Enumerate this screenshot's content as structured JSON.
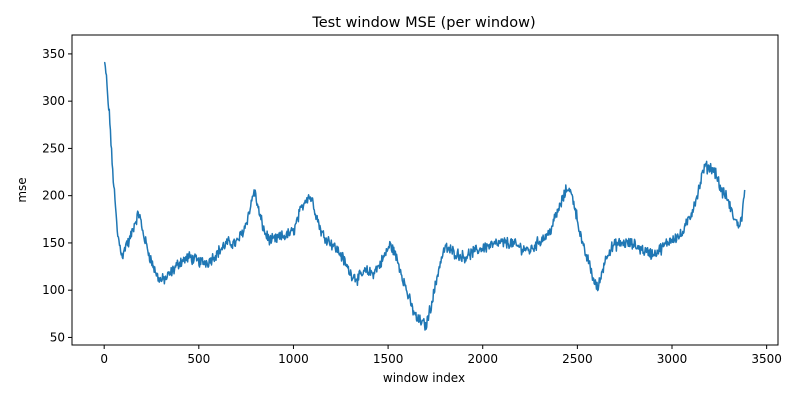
{
  "chart_data": {
    "type": "line",
    "title": "Test window MSE (per window)",
    "xlabel": "window index",
    "ylabel": "mse",
    "xlim": [
      -170,
      3560
    ],
    "ylim": [
      42,
      370
    ],
    "x_ticks": [
      0,
      500,
      1000,
      1500,
      2000,
      2500,
      3000,
      3500
    ],
    "y_ticks": [
      50,
      100,
      150,
      200,
      250,
      300,
      350
    ],
    "x_tick_labels": [
      "0",
      "500",
      "1000",
      "1500",
      "2000",
      "2500",
      "3000",
      "3500"
    ],
    "y_tick_labels": [
      "50",
      "100",
      "150",
      "200",
      "250",
      "300",
      "350"
    ],
    "grid": false,
    "series": [
      {
        "color": "#1f77b4",
        "noise_amplitude": 5,
        "x": [
          0,
          10,
          20,
          30,
          40,
          55,
          70,
          85,
          100,
          115,
          130,
          160,
          185,
          200,
          220,
          250,
          280,
          300,
          330,
          360,
          400,
          450,
          500,
          550,
          600,
          650,
          700,
          740,
          770,
          790,
          800,
          820,
          850,
          880,
          920,
          960,
          1000,
          1030,
          1060,
          1080,
          1100,
          1120,
          1150,
          1200,
          1250,
          1300,
          1340,
          1380,
          1420,
          1460,
          1490,
          1510,
          1530,
          1560,
          1590,
          1620,
          1650,
          1680,
          1700,
          1740,
          1770,
          1800,
          1850,
          1900,
          1950,
          2000,
          2050,
          2100,
          2150,
          2200,
          2250,
          2300,
          2350,
          2400,
          2430,
          2450,
          2480,
          2500,
          2530,
          2560,
          2590,
          2610,
          2630,
          2660,
          2700,
          2750,
          2800,
          2850,
          2900,
          2950,
          3000,
          3050,
          3100,
          3140,
          3170,
          3200,
          3230,
          3260,
          3290,
          3320,
          3350,
          3370,
          3385
        ],
        "y": [
          340,
          330,
          300,
          280,
          240,
          200,
          160,
          145,
          135,
          150,
          150,
          170,
          182,
          165,
          150,
          130,
          115,
          110,
          113,
          120,
          130,
          135,
          130,
          130,
          140,
          150,
          150,
          165,
          185,
          205,
          200,
          180,
          160,
          152,
          155,
          158,
          162,
          180,
          195,
          200,
          195,
          180,
          160,
          150,
          138,
          118,
          112,
          120,
          118,
          128,
          140,
          148,
          142,
          125,
          105,
          85,
          70,
          66,
          62,
          95,
          125,
          145,
          140,
          135,
          140,
          145,
          148,
          150,
          150,
          145,
          142,
          152,
          160,
          185,
          200,
          210,
          195,
          175,
          145,
          130,
          108,
          102,
          120,
          140,
          148,
          150,
          148,
          142,
          138,
          145,
          155,
          158,
          180,
          205,
          230,
          230,
          225,
          205,
          198,
          180,
          168,
          178,
          205
        ]
      }
    ]
  }
}
